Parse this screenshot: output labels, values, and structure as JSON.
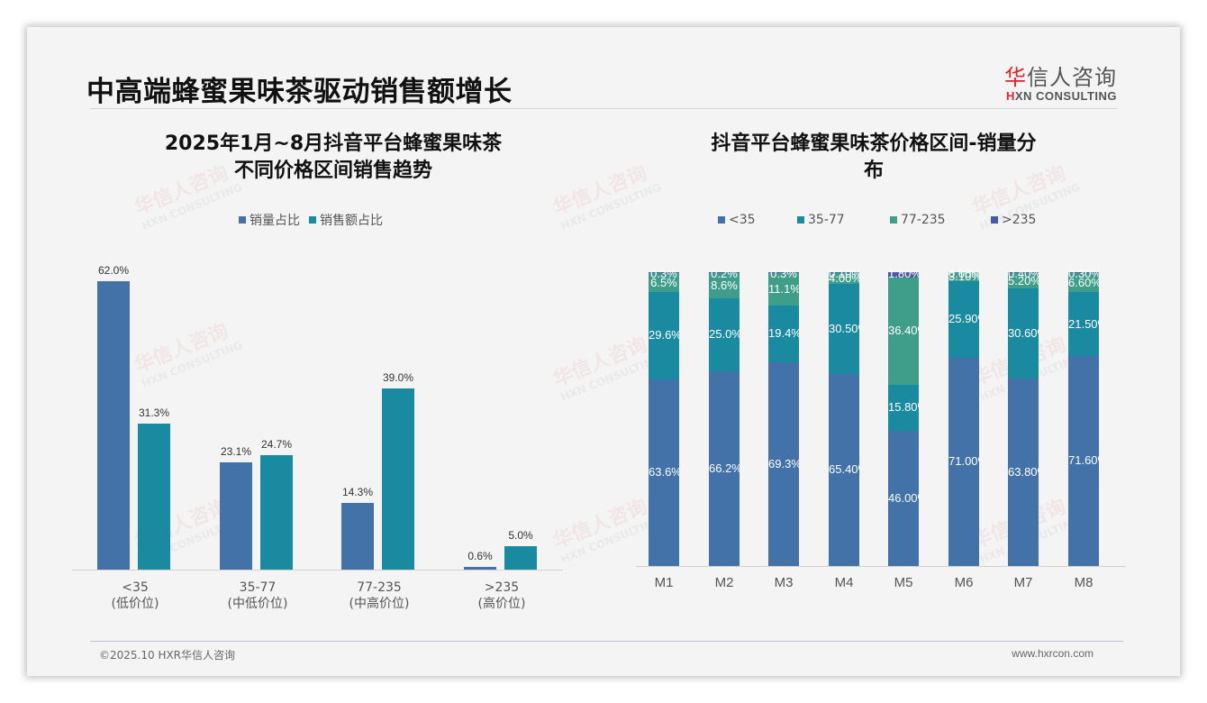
{
  "header": {
    "title": "中高端蜂蜜果味茶驱动销售额增长",
    "logo_cn_red": "华",
    "logo_cn_rest": "信人咨询",
    "logo_en_red": "H",
    "logo_en_rest": "XN CONSULTING"
  },
  "watermark": {
    "cn": "华信人咨询",
    "en": "HXN CONSULTING"
  },
  "footer": {
    "copyright": "©2025.10 HXR华信人咨询",
    "website": "www.hxrcon.com"
  },
  "colors": {
    "lt35": "#4272a8",
    "r35_77": "#1a8aa0",
    "r77_235": "#3e9e8a",
    "gt235": "#4a5aa0",
    "background": "#f4f4f4"
  },
  "chart_data": [
    {
      "type": "bar",
      "title": "2025年1月~8月抖音平台蜂蜜果味茶不同价格区间销售趋势",
      "title_line1": "2025年1月~8月抖音平台蜂蜜果味茶",
      "title_line2": "不同价格区间销售趋势",
      "categories": [
        "<35",
        "35-77",
        "77-235",
        ">235"
      ],
      "category_sublabels": [
        "(低价位)",
        "(中低价位)",
        "(中高价位)",
        "(高价位)"
      ],
      "series": [
        {
          "name": "销量占比",
          "values": [
            62.0,
            23.1,
            14.3,
            0.6
          ],
          "labels": [
            "62.0%",
            "23.1%",
            "14.3%",
            "0.6%"
          ],
          "color": "#4272a8"
        },
        {
          "name": "销售额占比",
          "values": [
            31.3,
            24.7,
            39.0,
            5.0
          ],
          "labels": [
            "31.3%",
            "24.7%",
            "39.0%",
            "5.0%"
          ],
          "color": "#1a8aa0"
        }
      ],
      "xlabel": "",
      "ylabel": "",
      "ylim": [
        0,
        62
      ],
      "grid": false,
      "legend_position": "top",
      "data_labels": true
    },
    {
      "type": "bar",
      "stacked": true,
      "percent_stacked": true,
      "title": "抖音平台蜂蜜果味茶价格区间-销量分布",
      "title_line1": "抖音平台蜂蜜果味茶价格区间-销量分",
      "title_line2": "布",
      "categories": [
        "M1",
        "M2",
        "M3",
        "M4",
        "M5",
        "M6",
        "M7",
        "M8"
      ],
      "series": [
        {
          "name": "<35",
          "values": [
            63.6,
            66.2,
            69.3,
            65.4,
            46.0,
            71.0,
            63.8,
            71.6
          ],
          "labels": [
            "63.6%",
            "66.2%",
            "69.3%",
            "65.40%",
            "46.00%",
            "71.00%",
            "63.80%",
            "71.60%"
          ],
          "color": "#4272a8"
        },
        {
          "name": "35-77",
          "values": [
            29.6,
            25.0,
            19.4,
            30.5,
            15.8,
            25.9,
            30.6,
            21.5
          ],
          "labels": [
            "29.6%",
            "25.0%",
            "19.4%",
            "30.50%",
            "15.80%",
            "25.90%",
            "30.60%",
            "21.50%"
          ],
          "color": "#1a8aa0"
        },
        {
          "name": "77-235",
          "values": [
            6.5,
            8.6,
            11.1,
            4.0,
            36.4,
            3.1,
            5.2,
            6.6
          ],
          "labels": [
            "6.5%",
            "8.6%",
            "11.1%",
            "4.00%",
            "36.40%",
            "3.10%",
            "5.20%",
            "6.60%"
          ],
          "color": "#3e9e8a"
        },
        {
          "name": ">235",
          "values": [
            0.3,
            0.2,
            0.3,
            0.1,
            1.8,
            0.0,
            0.4,
            0.3
          ],
          "labels": [
            "0.3%",
            "0.2%",
            "0.3%",
            "0.10%",
            "1.80%",
            "0.00%",
            "0.40%",
            "0.30%"
          ],
          "color": "#4a5aa0"
        }
      ],
      "xlabel": "",
      "ylabel": "",
      "ylim": [
        0,
        100
      ],
      "grid": false,
      "legend_position": "top",
      "data_labels": true
    }
  ]
}
